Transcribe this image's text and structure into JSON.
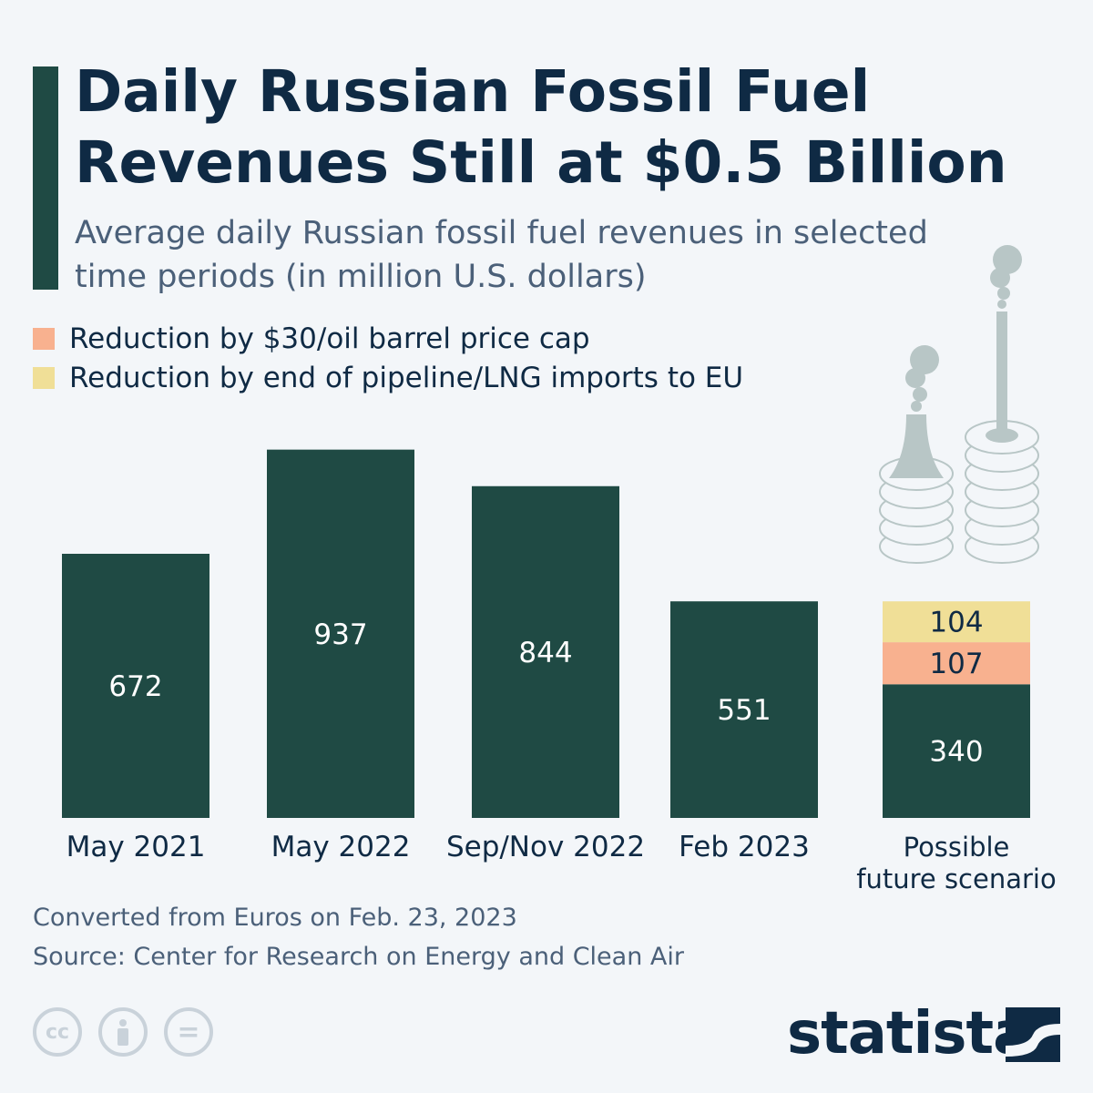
{
  "title": "Daily Russian Fossil Fuel Revenues Still at $0.5 Billion",
  "subtitle": "Average daily Russian fossil fuel revenues in selected time periods (in million U.S. dollars)",
  "legend": [
    {
      "label": "Reduction by $30/oil barrel price cap",
      "color": "#f8b18f"
    },
    {
      "label": "Reduction by end of pipeline/LNG imports to EU",
      "color": "#f0df97"
    }
  ],
  "chart_data": {
    "type": "bar",
    "stacked": true,
    "categories": [
      "May 2021",
      "May 2022",
      "Sep/Nov 2022",
      "Feb 2023",
      "Possible future scenario"
    ],
    "series": [
      {
        "values": [
          672,
          937,
          844,
          551,
          340
        ],
        "color": "#1f4a44"
      },
      {
        "name": "Reduction by $30/oil barrel price cap",
        "values": [
          0,
          0,
          0,
          0,
          107
        ],
        "color": "#f8b18f"
      },
      {
        "name": "Reduction by end of pipeline/LNG imports to EU",
        "values": [
          0,
          0,
          0,
          0,
          104
        ],
        "color": "#f0df97"
      }
    ],
    "ylim": [
      0,
      937
    ],
    "grid": false,
    "legend_position": "top-left"
  },
  "footer": {
    "note": "Converted from Euros on Feb. 23, 2023",
    "source": "Source: Center for Research on Energy and Clean Air"
  },
  "license_icons": [
    "cc-icon",
    "attribution-icon",
    "no-derivatives-icon"
  ],
  "license_text": {
    "cc": "cc",
    "eq": "="
  },
  "brand": "statista"
}
